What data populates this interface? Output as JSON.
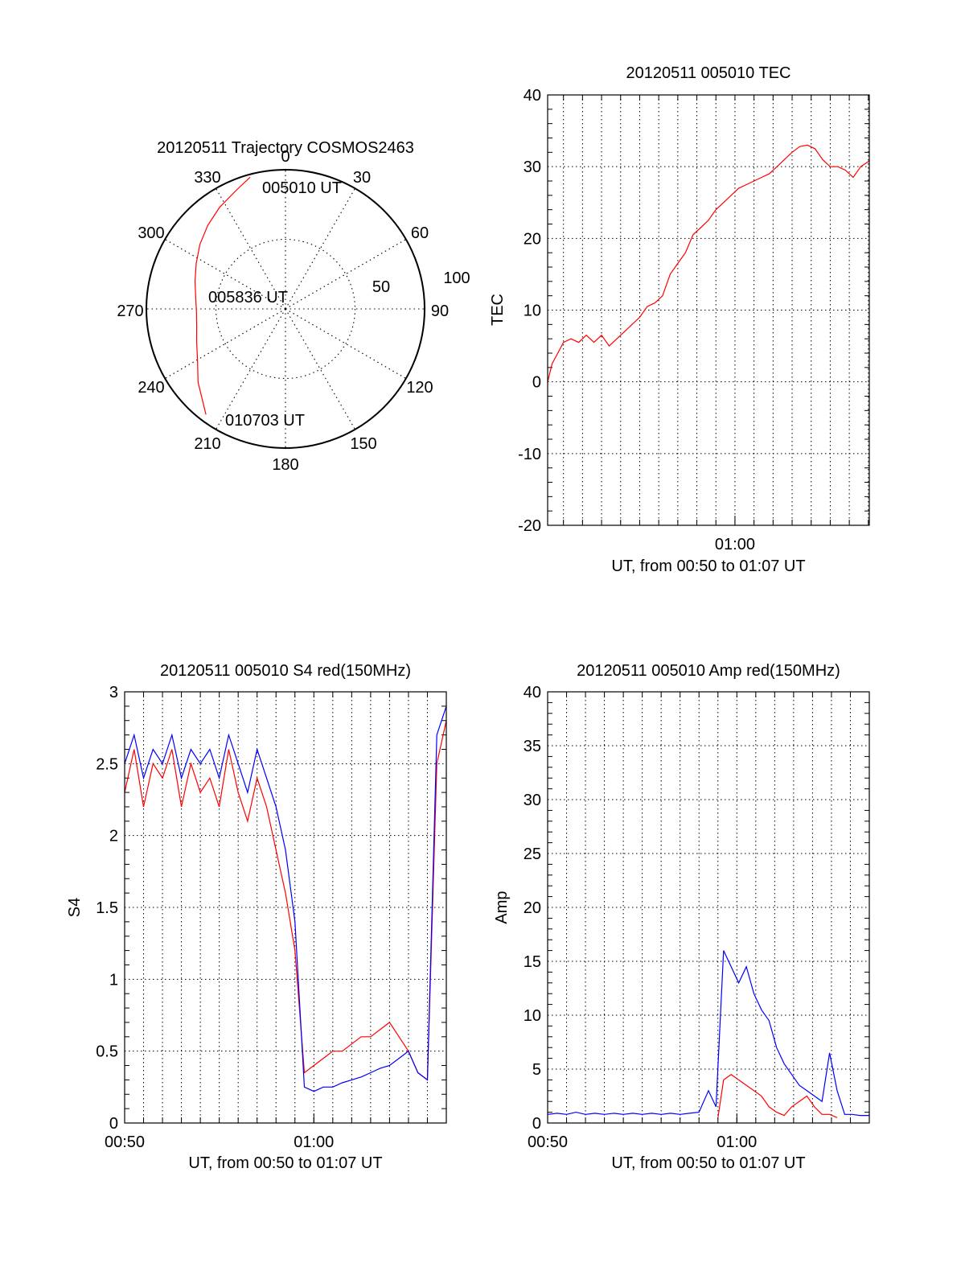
{
  "chart_data": [
    {
      "type": "polar",
      "title": "20120511 Trajectory COSMOS2463",
      "angle_labels": [
        "0",
        "30",
        "60",
        "90",
        "120",
        "150",
        "180",
        "210",
        "240",
        "270",
        "300",
        "330"
      ],
      "radial_labels": [
        "50",
        "100"
      ],
      "radial_values": [
        50,
        100
      ],
      "grid": true,
      "track_color": "#ff0000",
      "series": [
        {
          "azimuth": [
            345,
            337,
            327,
            317,
            307,
            297,
            287,
            277,
            268,
            259,
            250,
            240,
            230,
            217
          ],
          "radius": [
            98,
            92,
            87,
            82,
            77,
            72,
            68,
            65,
            64,
            65,
            68,
            73,
            82,
            95
          ]
        }
      ],
      "annotations": [
        {
          "text": "005010 UT",
          "azimuth": 345,
          "radius": 98
        },
        {
          "text": "005836 UT",
          "azimuth": 180,
          "radius": 0
        },
        {
          "text": "010703 UT",
          "azimuth": 217,
          "radius": 95
        }
      ]
    },
    {
      "type": "line",
      "title": "20120511 005010 TEC",
      "xlabel": "UT, from 00:50 to 01:07 UT",
      "ylabel": "TEC",
      "xlim": [
        50.17,
        67.05
      ],
      "ylim": [
        -20,
        40
      ],
      "x_ticks": [
        {
          "value": 60,
          "label": "01:00"
        }
      ],
      "y_ticks": [
        -20,
        -10,
        0,
        10,
        20,
        30,
        40
      ],
      "grid": true,
      "series": [
        {
          "color": "#ff0000",
          "x": [
            50.17,
            50.4,
            50.7,
            51.0,
            51.4,
            51.8,
            52.2,
            52.6,
            53.0,
            53.4,
            53.8,
            54.2,
            54.6,
            55.0,
            55.4,
            55.8,
            56.2,
            56.6,
            57.0,
            57.4,
            57.8,
            58.2,
            58.6,
            59.0,
            59.4,
            59.8,
            60.2,
            60.6,
            61.0,
            61.4,
            61.8,
            62.2,
            62.6,
            63.0,
            63.4,
            63.8,
            64.2,
            64.6,
            65.0,
            65.4,
            65.8,
            66.2,
            66.6,
            67.05
          ],
          "y": [
            0,
            2.5,
            4,
            5.5,
            6,
            5.5,
            6.5,
            5.5,
            6.5,
            5,
            6,
            7,
            8,
            9,
            10.5,
            11,
            12,
            15,
            16.5,
            18,
            20.5,
            21.5,
            22.5,
            24,
            25,
            26,
            27,
            27.5,
            28,
            28.5,
            29,
            30,
            31,
            32,
            32.8,
            33,
            32.5,
            31,
            30,
            30,
            29.5,
            28.5,
            30,
            30.8
          ]
        }
      ]
    },
    {
      "type": "line",
      "title": "20120511 005010 S4 red(150MHz)",
      "xlabel": "UT, from 00:50 to 01:07 UT",
      "ylabel": "S4",
      "xlim": [
        50,
        67
      ],
      "ylim": [
        0,
        3
      ],
      "x_ticks": [
        {
          "value": 50,
          "label": "00:50"
        },
        {
          "value": 60,
          "label": "01:00"
        }
      ],
      "y_ticks": [
        {
          "value": 0,
          "label": "0"
        },
        {
          "value": 0.5,
          "label": "0.5"
        },
        {
          "value": 1,
          "label": "1"
        },
        {
          "value": 1.5,
          "label": "1.5"
        },
        {
          "value": 2,
          "label": "2"
        },
        {
          "value": 2.5,
          "label": "2.5"
        },
        {
          "value": 3,
          "label": "3"
        }
      ],
      "grid": true,
      "series": [
        {
          "color": "#ff0000",
          "x": [
            50.0,
            50.5,
            51.0,
            51.5,
            52.0,
            52.5,
            53.0,
            53.5,
            54.0,
            54.5,
            55.0,
            55.5,
            56.0,
            56.5,
            57.0,
            57.5,
            58.0,
            58.5,
            59.0,
            59.5,
            60.0,
            60.5,
            61.0,
            61.5,
            62.0,
            62.5,
            63.0,
            63.5,
            64.0,
            64.5,
            65.0,
            65.5,
            66.0,
            66.5,
            67.0
          ],
          "y": [
            2.3,
            2.6,
            2.2,
            2.5,
            2.4,
            2.6,
            2.2,
            2.5,
            2.3,
            2.4,
            2.2,
            2.6,
            2.3,
            2.1,
            2.4,
            2.2,
            1.9,
            1.6,
            1.2,
            0.35,
            0.4,
            0.45,
            0.5,
            0.5,
            0.55,
            0.6,
            0.6,
            0.65,
            0.7,
            0.6,
            0.5,
            0.35,
            0.3,
            2.5,
            2.8
          ]
        },
        {
          "color": "#0000ff",
          "x": [
            50.0,
            50.5,
            51.0,
            51.5,
            52.0,
            52.5,
            53.0,
            53.5,
            54.0,
            54.5,
            55.0,
            55.5,
            56.0,
            56.5,
            57.0,
            57.5,
            58.0,
            58.5,
            59.0,
            59.5,
            60.0,
            60.5,
            61.0,
            61.5,
            62.0,
            62.5,
            63.0,
            63.5,
            64.0,
            64.5,
            65.0,
            65.5,
            66.0,
            66.5,
            67.0
          ],
          "y": [
            2.5,
            2.7,
            2.4,
            2.6,
            2.5,
            2.7,
            2.4,
            2.6,
            2.5,
            2.6,
            2.4,
            2.7,
            2.5,
            2.3,
            2.6,
            2.4,
            2.2,
            1.9,
            1.4,
            0.25,
            0.22,
            0.25,
            0.25,
            0.28,
            0.3,
            0.32,
            0.35,
            0.38,
            0.4,
            0.45,
            0.5,
            0.35,
            0.3,
            2.7,
            2.9
          ]
        }
      ]
    },
    {
      "type": "line",
      "title": "20120511 005010 Amp red(150MHz)",
      "xlabel": "UT, from 00:50 to 01:07 UT",
      "ylabel": "Amp",
      "xlim": [
        50,
        67
      ],
      "ylim": [
        0,
        40
      ],
      "x_ticks": [
        {
          "value": 50,
          "label": "00:50"
        },
        {
          "value": 60,
          "label": "01:00"
        }
      ],
      "y_ticks": [
        0,
        5,
        10,
        15,
        20,
        25,
        30,
        35,
        40
      ],
      "grid": true,
      "series": [
        {
          "color": "#0000ff",
          "x": [
            50.0,
            50.5,
            51.0,
            51.5,
            52.0,
            52.5,
            53.0,
            53.5,
            54.0,
            54.5,
            55.0,
            55.5,
            56.0,
            56.5,
            57.0,
            57.5,
            58.0,
            58.5,
            58.9,
            59.3,
            59.7,
            60.1,
            60.5,
            60.9,
            61.3,
            61.7,
            62.1,
            62.5,
            62.9,
            63.3,
            63.7,
            64.1,
            64.5,
            64.9,
            65.3,
            65.7,
            66.1,
            66.5,
            67.0
          ],
          "y": [
            0.8,
            0.9,
            0.8,
            1.0,
            0.8,
            0.9,
            0.8,
            0.9,
            0.8,
            0.9,
            0.8,
            0.9,
            0.8,
            0.9,
            0.8,
            0.9,
            1.0,
            3.0,
            1.5,
            16.0,
            14.5,
            13.0,
            14.5,
            12.0,
            10.5,
            9.5,
            7.0,
            5.5,
            4.5,
            3.5,
            3.0,
            2.5,
            2.0,
            6.5,
            3.0,
            0.8,
            0.8,
            0.7,
            0.7
          ]
        },
        {
          "color": "#ff0000",
          "x": [
            59.0,
            59.3,
            59.7,
            60.1,
            60.5,
            60.9,
            61.3,
            61.7,
            62.1,
            62.5,
            62.9,
            63.3,
            63.7,
            64.1,
            64.5,
            64.9,
            65.3
          ],
          "y": [
            0.5,
            4.0,
            4.5,
            4.0,
            3.5,
            3.0,
            2.5,
            1.5,
            1.0,
            0.7,
            1.5,
            2.0,
            2.5,
            1.5,
            0.8,
            0.8,
            0.5
          ]
        }
      ]
    }
  ]
}
